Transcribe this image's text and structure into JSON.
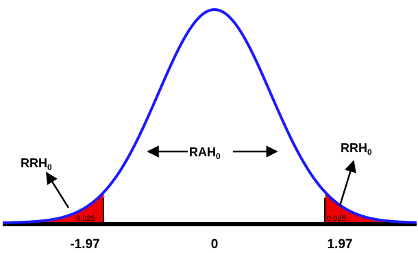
{
  "diagram": {
    "region_labels": {
      "left": {
        "main": "RRH",
        "sub": "0"
      },
      "center": {
        "main": "RAH",
        "sub": "0"
      },
      "right": {
        "main": "RRH",
        "sub": "0"
      }
    },
    "tail_area_labels": {
      "left": "0.025",
      "right": "0.025"
    },
    "axis_ticks": {
      "left": "-1.97",
      "center": "0",
      "right": "1.97"
    },
    "critical_value": 1.97,
    "colors": {
      "curve": "#1a1aff",
      "tail_fill": "#ee0000",
      "axis": "#000000",
      "text": "#000000"
    }
  }
}
